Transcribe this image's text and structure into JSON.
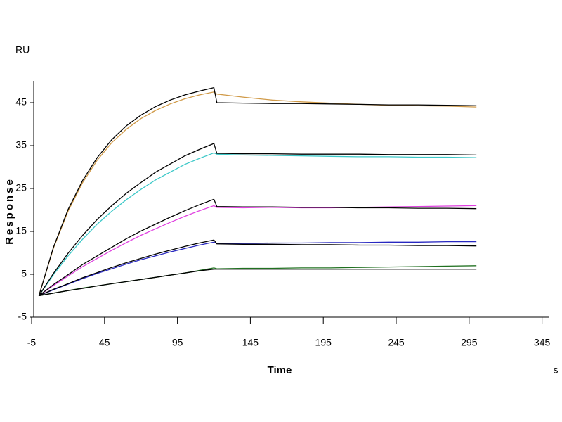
{
  "chart_data": {
    "type": "line",
    "y_unit": "RU",
    "y_label": "Response",
    "x_label": "Time",
    "x_unit": "s",
    "xlim": [
      -5,
      350
    ],
    "ylim": [
      -5,
      50
    ],
    "xticks": [
      -5,
      45,
      95,
      145,
      195,
      245,
      295,
      345
    ],
    "yticks": [
      -5,
      5,
      15,
      25,
      35,
      45
    ],
    "x": [
      0,
      10,
      20,
      30,
      40,
      50,
      60,
      70,
      80,
      90,
      100,
      110,
      120,
      122,
      140,
      160,
      180,
      200,
      220,
      240,
      260,
      280,
      300
    ],
    "series": [
      {
        "color": "#d09a48",
        "values": [
          0,
          11.1,
          19.7,
          26.4,
          31.6,
          35.7,
          38.8,
          41.3,
          43.2,
          44.7,
          45.9,
          46.8,
          47.5,
          47.0,
          46.3,
          45.6,
          45.2,
          44.9,
          44.6,
          44.4,
          44.3,
          44.2,
          44.0
        ]
      },
      {
        "color": "#000000",
        "values": [
          0,
          11.3,
          20.1,
          26.9,
          32.2,
          36.4,
          39.6,
          42.1,
          44.1,
          45.6,
          46.8,
          47.7,
          48.5,
          45.0,
          44.9,
          44.8,
          44.8,
          44.7,
          44.6,
          44.5,
          44.5,
          44.4,
          44.3
        ]
      },
      {
        "color": "#3cc8c8",
        "values": [
          0,
          4.9,
          9.3,
          13.2,
          16.7,
          19.7,
          22.4,
          24.8,
          27.0,
          28.8,
          30.6,
          32.0,
          33.3,
          33.0,
          32.8,
          32.7,
          32.6,
          32.5,
          32.4,
          32.4,
          32.3,
          32.3,
          32.2
        ]
      },
      {
        "color": "#000000",
        "values": [
          0,
          5.2,
          9.9,
          14.1,
          17.8,
          21.0,
          23.9,
          26.4,
          28.8,
          30.7,
          32.6,
          34.1,
          35.5,
          33.2,
          33.1,
          33.1,
          33.0,
          33.0,
          33.0,
          32.9,
          32.9,
          32.9,
          32.8
        ]
      },
      {
        "color": "#e040e0",
        "values": [
          0,
          2.4,
          4.6,
          6.8,
          8.7,
          10.6,
          12.4,
          14.1,
          15.6,
          17.1,
          18.5,
          19.8,
          21.0,
          20.6,
          20.5,
          20.6,
          20.5,
          20.5,
          20.6,
          20.7,
          20.8,
          20.9,
          21.0
        ]
      },
      {
        "color": "#000000",
        "values": [
          0,
          2.6,
          4.9,
          7.3,
          9.3,
          11.3,
          13.3,
          15.1,
          16.7,
          18.3,
          19.8,
          21.2,
          22.5,
          20.8,
          20.7,
          20.7,
          20.6,
          20.6,
          20.5,
          20.5,
          20.4,
          20.4,
          20.3
        ]
      },
      {
        "color": "#2828c0",
        "values": [
          0,
          1.4,
          2.7,
          4.0,
          5.2,
          6.3,
          7.4,
          8.4,
          9.3,
          10.2,
          11.0,
          11.8,
          12.5,
          12.2,
          12.2,
          12.3,
          12.3,
          12.4,
          12.4,
          12.5,
          12.5,
          12.6,
          12.6
        ]
      },
      {
        "color": "#000000",
        "values": [
          0,
          1.5,
          2.8,
          4.2,
          5.4,
          6.6,
          7.7,
          8.7,
          9.7,
          10.6,
          11.5,
          12.3,
          13.0,
          12.1,
          12.0,
          12.0,
          11.9,
          11.9,
          11.8,
          11.8,
          11.7,
          11.7,
          11.6
        ]
      },
      {
        "color": "#207020",
        "values": [
          0,
          0.6,
          1.2,
          1.8,
          2.3,
          2.8,
          3.3,
          3.8,
          4.3,
          4.8,
          5.3,
          5.9,
          6.5,
          6.3,
          6.4,
          6.4,
          6.5,
          6.5,
          6.6,
          6.7,
          6.8,
          6.9,
          7.0
        ]
      },
      {
        "color": "#000000",
        "values": [
          0,
          0.6,
          1.2,
          1.7,
          2.3,
          2.8,
          3.3,
          3.8,
          4.3,
          4.8,
          5.3,
          5.8,
          6.2,
          6.2,
          6.2,
          6.2,
          6.2,
          6.2,
          6.2,
          6.2,
          6.2,
          6.2,
          6.2
        ]
      }
    ]
  }
}
